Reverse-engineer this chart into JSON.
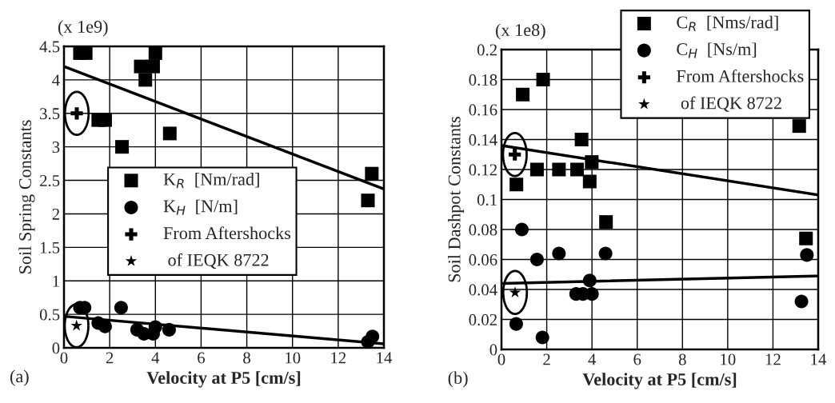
{
  "chart_data": [
    {
      "type": "scatter",
      "xlabel": "Velocity at P5 [cm/s]",
      "ylabel": "Soil Spring Constants",
      "annotations": [
        "(x 1e9)",
        "(a)"
      ],
      "xlim": [
        0,
        14
      ],
      "ylim": [
        0,
        4.5
      ],
      "xticks": [
        0,
        2,
        4,
        6,
        8,
        10,
        12,
        14
      ],
      "yticks": [
        0,
        0.5,
        1,
        1.5,
        2,
        2.5,
        3,
        3.5,
        4,
        4.5
      ],
      "grid": true,
      "legend": "center left",
      "series": [
        {
          "name": "K$_{R}$  [Nm/rad]",
          "color": "#000000",
          "marker": "square",
          "x": [
            0.7,
            0.95,
            1.5,
            1.8,
            2.54,
            3.36,
            3.56,
            3.9,
            4.0,
            4.63,
            13.3,
            13.47
          ],
          "values": [
            4.4,
            4.4,
            3.4,
            3.4,
            3.0,
            4.2,
            4.0,
            4.2,
            4.4,
            3.2,
            2.2,
            2.6
          ]
        },
        {
          "name": "K$_{H}$  [N/m]",
          "color": "#000000",
          "marker": "circle",
          "x": [
            0.7,
            0.9,
            1.5,
            1.8,
            2.5,
            3.2,
            3.5,
            3.9,
            4.0,
            4.6,
            13.3,
            13.5
          ],
          "values": [
            0.6,
            0.6,
            0.37,
            0.32,
            0.6,
            0.27,
            0.21,
            0.21,
            0.31,
            0.27,
            0.09,
            0.17
          ]
        },
        {
          "name": "From Aftershocks",
          "color": "#000000",
          "marker": "cross",
          "x": [
            0.56
          ],
          "values": [
            3.5
          ]
        },
        {
          "name": " of IEQK 8722",
          "color": "#000000",
          "marker": "star",
          "x": [
            0.55
          ],
          "values": [
            0.33
          ]
        },
        {
          "type": "line",
          "color": "#000000",
          "x": [
            0,
            14
          ],
          "values": [
            4.2,
            2.37
          ]
        },
        {
          "type": "line",
          "color": "#000000",
          "x": [
            0,
            14
          ],
          "values": [
            0.47,
            0.06
          ]
        }
      ]
    },
    {
      "type": "scatter",
      "xlabel": "Velocity at P5 [cm/s]",
      "ylabel": "Soil Dashpot Constants",
      "annotations": [
        "(x 1e8)",
        "(b)"
      ],
      "xlim": [
        0,
        14
      ],
      "ylim": [
        0,
        0.2
      ],
      "xticks": [
        0,
        2,
        4,
        6,
        8,
        10,
        12,
        14
      ],
      "yticks": [
        0,
        0.02,
        0.04,
        0.06,
        0.08,
        0.1,
        0.12,
        0.14,
        0.16,
        0.18,
        0.2
      ],
      "grid": true,
      "legend": "top right",
      "series": [
        {
          "name": "C$_{R}$  [Nms/rad]",
          "color": "#000000",
          "marker": "square",
          "x": [
            0.66,
            0.94,
            1.57,
            1.84,
            2.54,
            3.34,
            3.54,
            3.9,
            3.99,
            4.62,
            13.16,
            13.46
          ],
          "values": [
            0.11,
            0.17,
            0.12,
            0.18,
            0.12,
            0.12,
            0.14,
            0.112,
            0.125,
            0.085,
            0.149,
            0.074
          ]
        },
        {
          "name": "C$_{H}$  [Ns/m]",
          "color": "#000000",
          "marker": "circle",
          "x": [
            0.65,
            0.9,
            1.57,
            1.81,
            2.54,
            3.3,
            3.6,
            3.9,
            4.0,
            4.6,
            13.26,
            13.5
          ],
          "values": [
            0.017,
            0.08,
            0.06,
            0.008,
            0.064,
            0.037,
            0.037,
            0.046,
            0.037,
            0.064,
            0.032,
            0.063
          ]
        },
        {
          "name": "From Aftershocks",
          "color": "#000000",
          "marker": "cross",
          "x": [
            0.59
          ],
          "values": [
            0.13
          ]
        },
        {
          "name": " of IEQK 8722",
          "color": "#000000",
          "marker": "star",
          "x": [
            0.6
          ],
          "values": [
            0.038
          ]
        },
        {
          "type": "line",
          "color": "#000000",
          "x": [
            0,
            14
          ],
          "values": [
            0.136,
            0.103
          ]
        },
        {
          "type": "line",
          "color": "#000000",
          "x": [
            0,
            14
          ],
          "values": [
            0.044,
            0.049
          ]
        }
      ]
    }
  ]
}
